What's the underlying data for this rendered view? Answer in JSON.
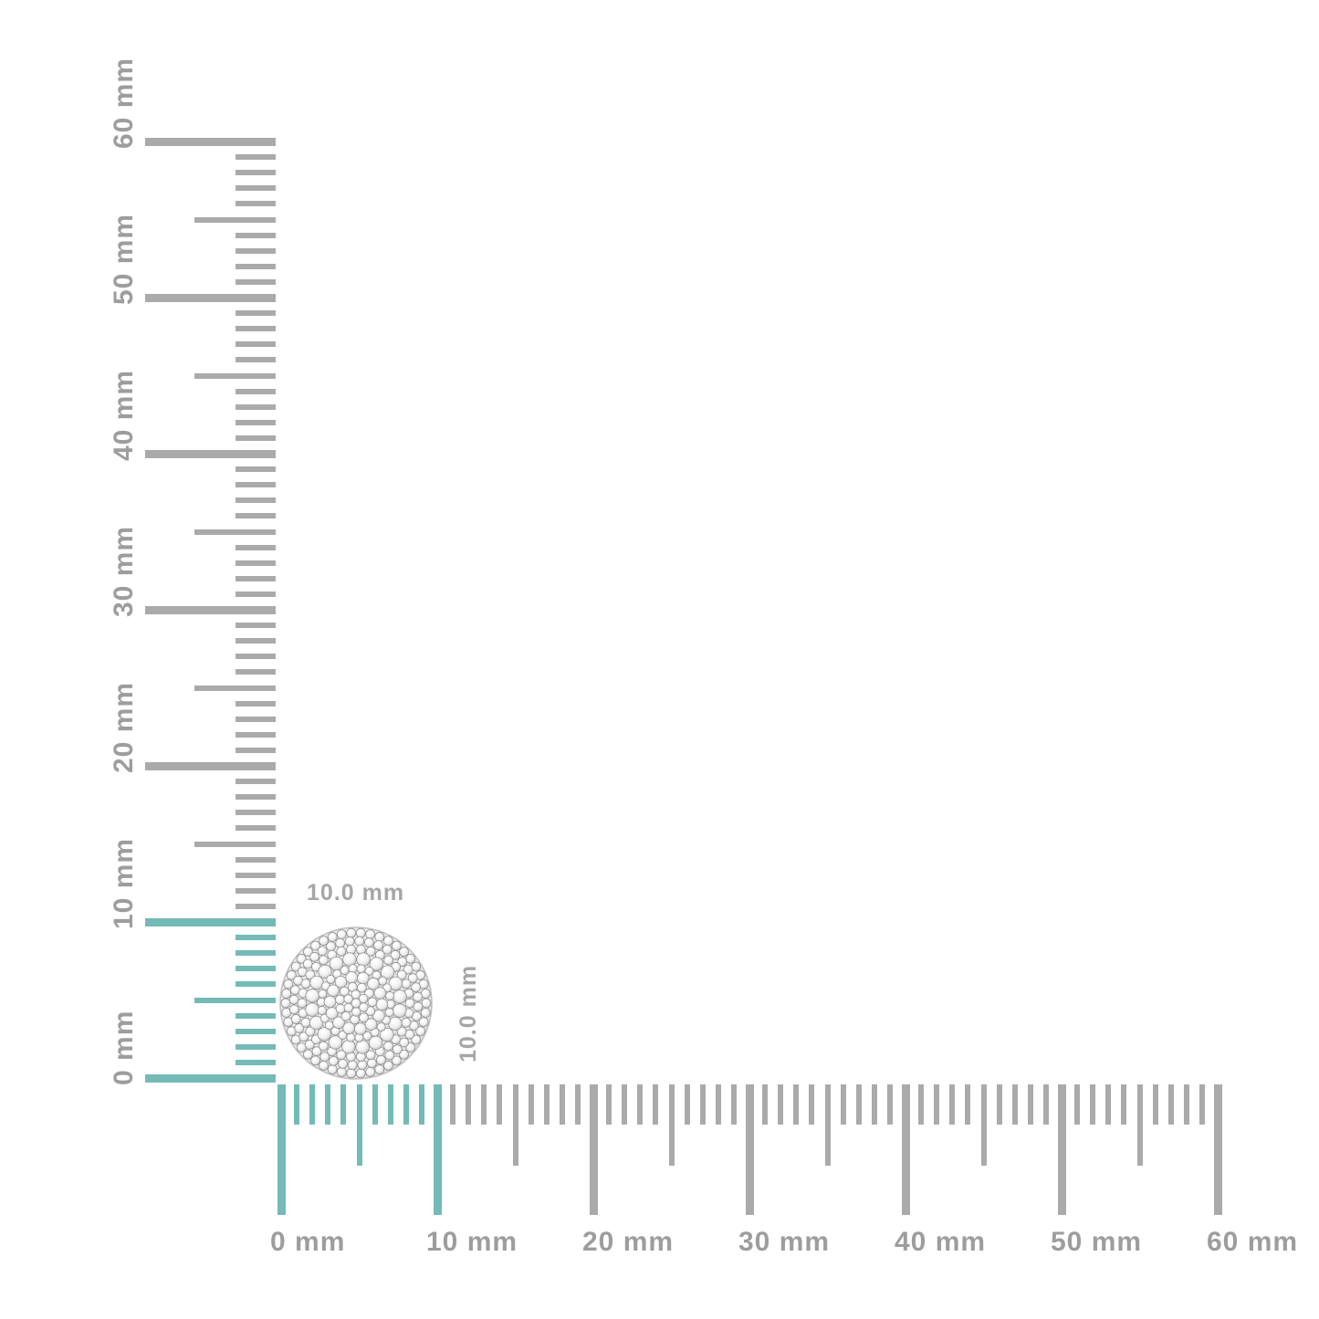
{
  "item": {
    "width_label": "10.0 mm",
    "height_label": "10.0 mm",
    "pave_rings": [
      {
        "r": 77,
        "count": 46,
        "sr": 5.0
      },
      {
        "r": 68,
        "count": 40,
        "sr": 5.0
      },
      {
        "r": 59,
        "count": 34,
        "sr": 5.0
      },
      {
        "r": 48.5,
        "count": 20,
        "sr": 7.3
      },
      {
        "r": 38,
        "count": 26,
        "sr": 4.6
      },
      {
        "r": 28.5,
        "count": 14,
        "sr": 6.4
      },
      {
        "r": 18,
        "count": 11,
        "sr": 5.0
      },
      {
        "r": 9.5,
        "count": 6,
        "sr": 4.8
      },
      {
        "r": 0,
        "count": 1,
        "sr": 5.0
      }
    ]
  },
  "rulers": {
    "unit": "mm",
    "min_mm": 0,
    "max_mm": 60,
    "major_step_mm": 10,
    "half_step_mm": 5,
    "minor_step_mm": 1,
    "highlight_range_mm": [
      0,
      10
    ],
    "vertical": {
      "labels": [
        "0 mm",
        "10 mm",
        "20 mm",
        "30 mm",
        "40 mm",
        "50 mm",
        "60 mm"
      ]
    },
    "horizontal": {
      "labels": [
        "0 mm",
        "10 mm",
        "20 mm",
        "30 mm",
        "40 mm",
        "50 mm",
        "60 mm"
      ]
    }
  },
  "colors": {
    "highlight_teal": "#74bab7",
    "tick_gray": "#aaaaaa",
    "ruler_label_gray": "#9d9d9d",
    "item_label_gray": "#a6a6a6",
    "metal_light": "#f3f3f3",
    "metal_dark": "#d6d6d6",
    "rim_stroke": "#c0c0c0",
    "stone_stroke": "#929292",
    "background": "#ffffff"
  }
}
